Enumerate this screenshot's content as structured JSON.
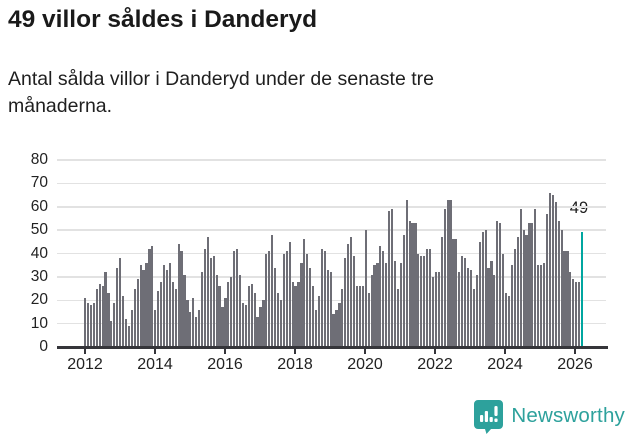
{
  "header": {
    "title": "49 villor såldes i Danderyd",
    "subtitle": "Antal sålda villor i Danderyd under de senaste tre månaderna."
  },
  "chart_data": {
    "type": "bar",
    "title": "49 villor såldes i Danderyd",
    "subtitle": "Antal sålda villor i Danderyd under de senaste tre månaderna.",
    "xlabel": "",
    "ylabel": "",
    "ylim": [
      0,
      80
    ],
    "y_ticks": [
      0,
      10,
      20,
      30,
      40,
      50,
      60,
      70,
      80
    ],
    "x_tick_labels": [
      "2012",
      "2014",
      "2016",
      "2018",
      "2020",
      "2022",
      "2024",
      "2026"
    ],
    "grid": "horizontal-only",
    "legend": "none",
    "frequency": "monthly",
    "start_month": "2012-01",
    "end_month": "2026-03",
    "values_by_year": {
      "2012": [
        21,
        19,
        18,
        19,
        25,
        27,
        26,
        32,
        23,
        11,
        19,
        34
      ],
      "2013": [
        38,
        22,
        12,
        9,
        16,
        25,
        29,
        35,
        33,
        36,
        42,
        43
      ],
      "2014": [
        16,
        24,
        28,
        35,
        33,
        36,
        28,
        25,
        44,
        41,
        31,
        20
      ],
      "2015": [
        15,
        21,
        13,
        16,
        32,
        42,
        47,
        38,
        39,
        31,
        26,
        17
      ],
      "2016": [
        21,
        28,
        30,
        41,
        42,
        31,
        19,
        18,
        26,
        27,
        23,
        13
      ],
      "2017": [
        17,
        20,
        40,
        41,
        48,
        34,
        23,
        20,
        40,
        41,
        45,
        28
      ],
      "2018": [
        26,
        28,
        36,
        46,
        40,
        34,
        26,
        16,
        22,
        42,
        41,
        33
      ],
      "2019": [
        32,
        14,
        16,
        19,
        25,
        38,
        44,
        47,
        39,
        26,
        26,
        26
      ],
      "2020": [
        50,
        23,
        31,
        35,
        36,
        43,
        41,
        36,
        58,
        59,
        37,
        25
      ],
      "2021": [
        36,
        48,
        63,
        54,
        53,
        53,
        40,
        39,
        39,
        42,
        42,
        30
      ],
      "2022": [
        32,
        32,
        47,
        59,
        63,
        63,
        46,
        46,
        32,
        39,
        38,
        34
      ],
      "2023": [
        33,
        25,
        31,
        45,
        49,
        50,
        34,
        37,
        31,
        54,
        53,
        40
      ],
      "2024": [
        23,
        22,
        35,
        42,
        47,
        59,
        50,
        48,
        53,
        53,
        59,
        35
      ],
      "2025": [
        35,
        36,
        57,
        66,
        65,
        62,
        54,
        50,
        41,
        41,
        32,
        29
      ],
      "2026": [
        28,
        28,
        49
      ]
    },
    "highlight": {
      "month": "2026-03",
      "value": 49,
      "annotation": "49"
    },
    "bar_color": "#6e6e76",
    "highlight_color": "#00a6a0",
    "gridline_color": "#e2e2e2",
    "axis_color": "#35353a"
  },
  "footer": {
    "brand": "Newsworthy",
    "brand_color": "#2da19c",
    "icon": "newsworthy-logo-icon"
  }
}
